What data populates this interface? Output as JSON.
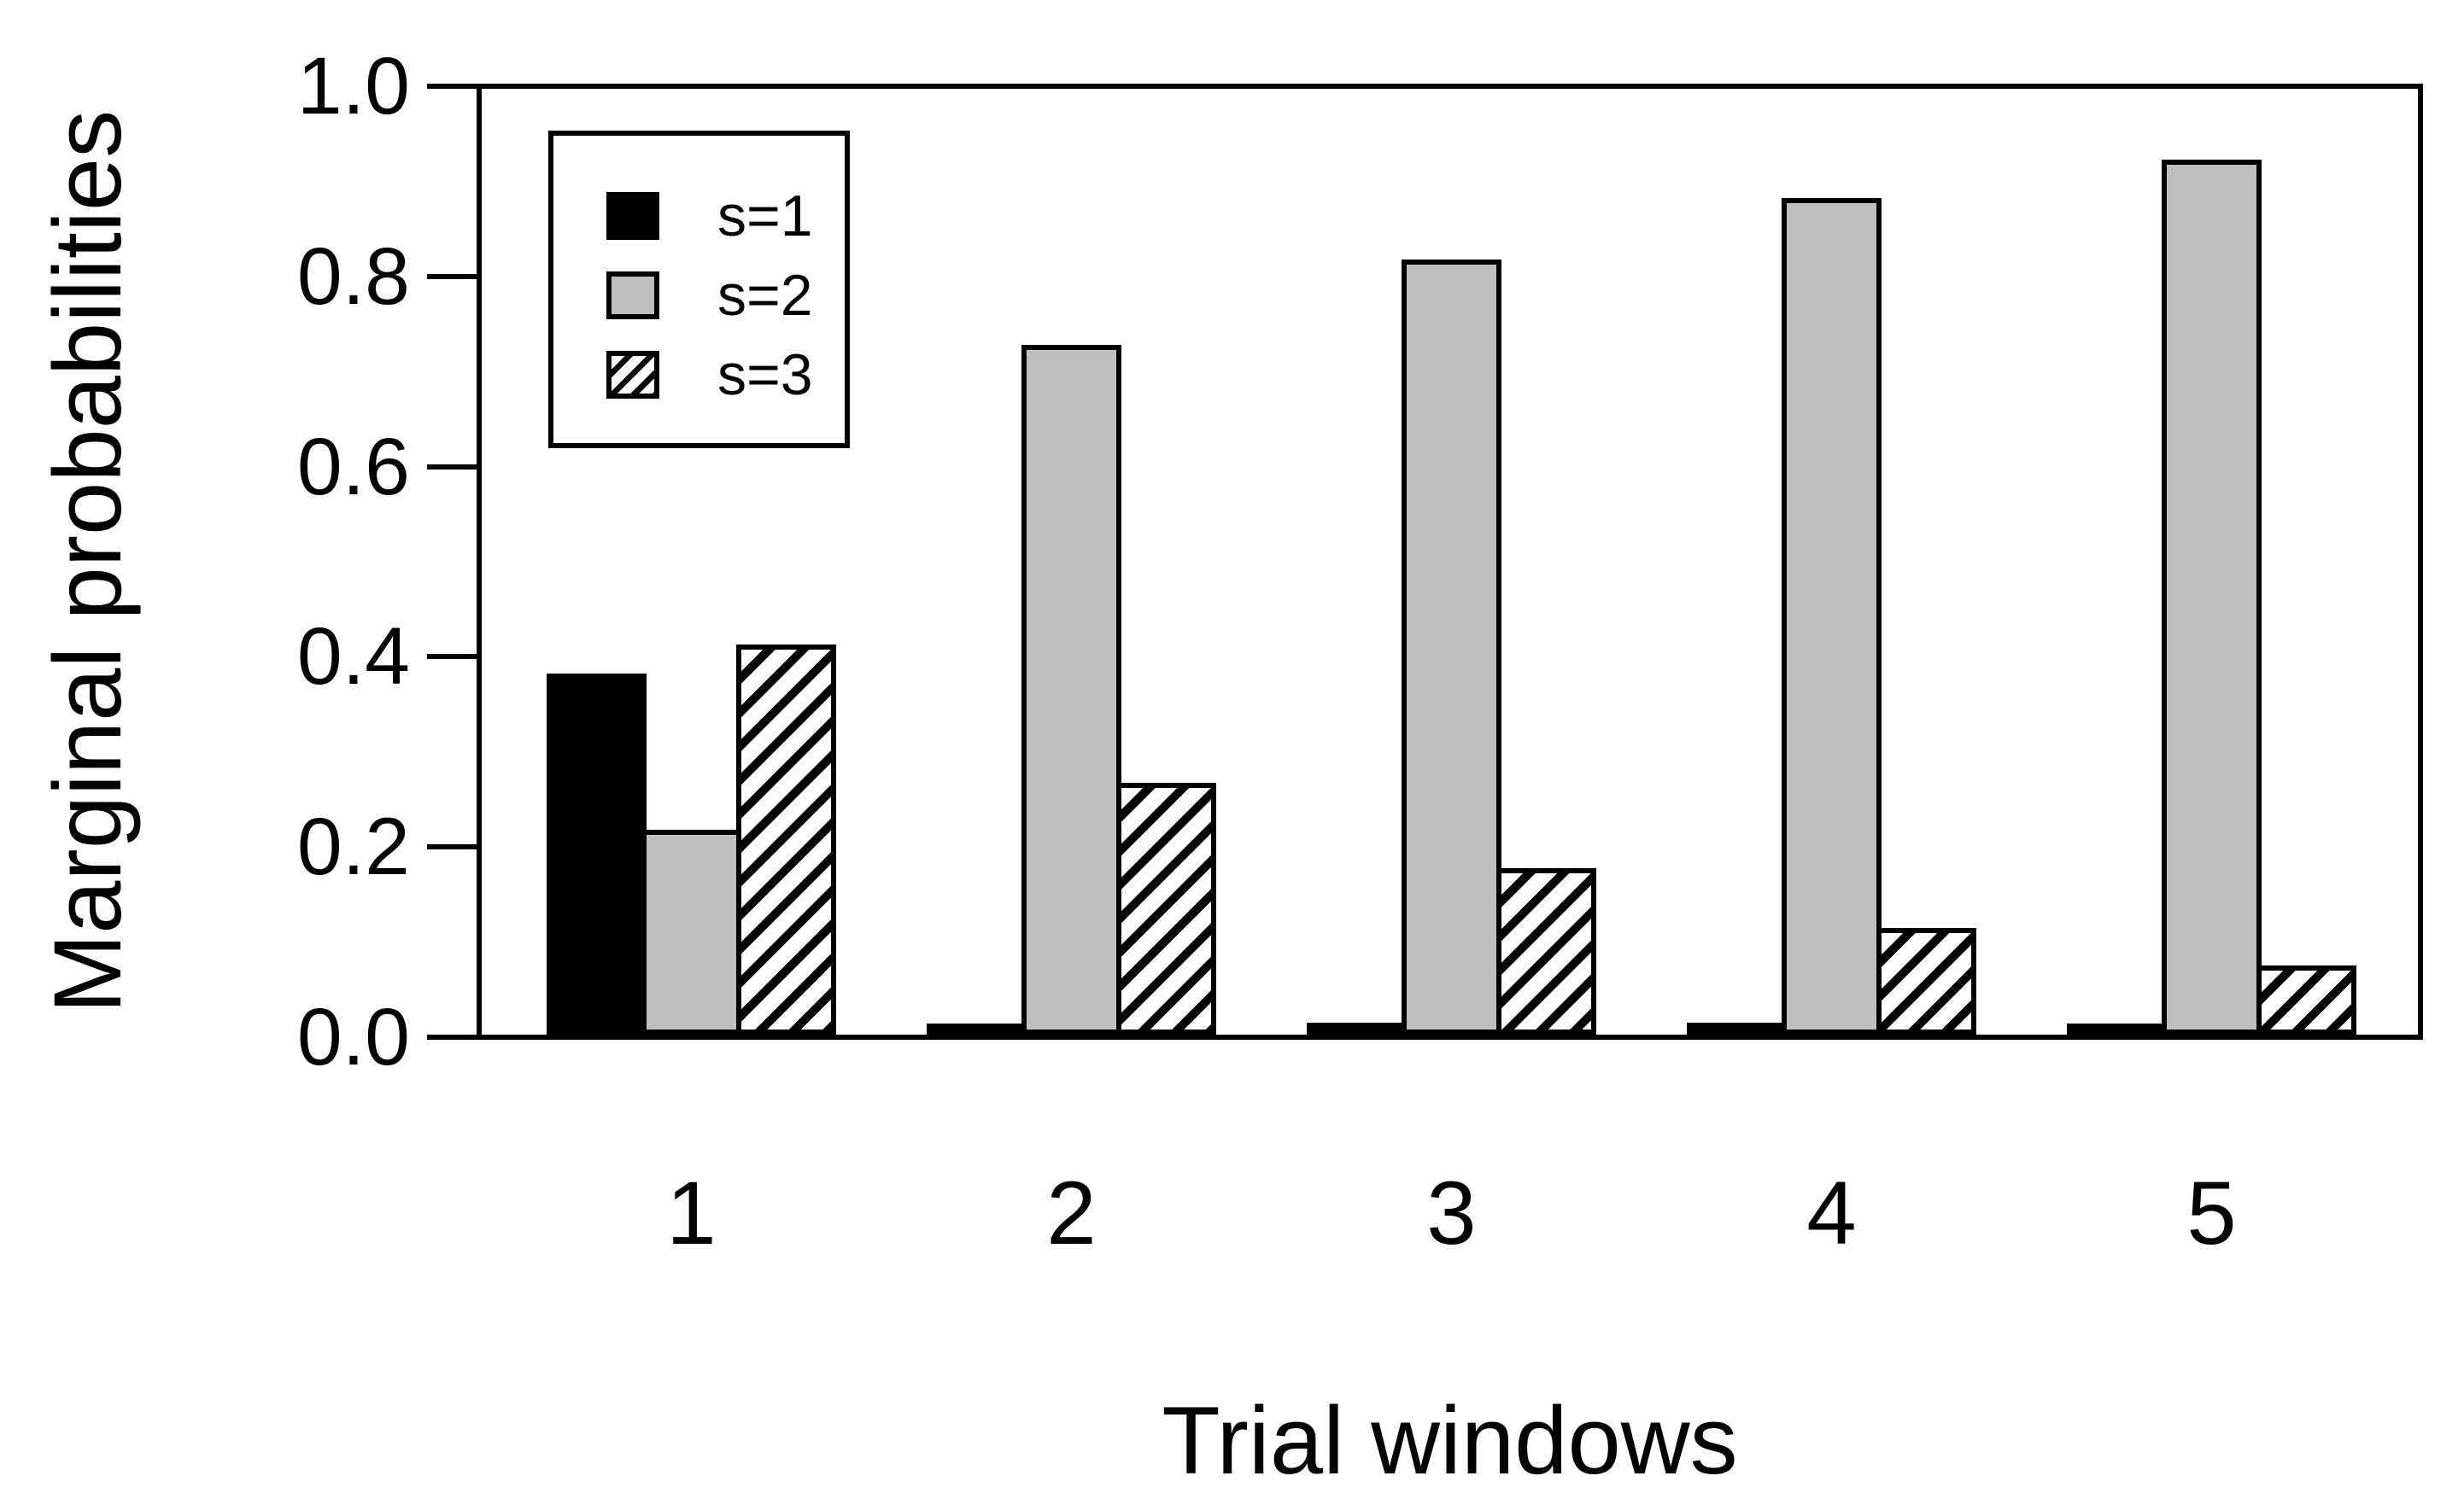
{
  "chart_data": {
    "type": "bar",
    "title": "",
    "xlabel": "Trial windows",
    "ylabel": "Marginal probabilities",
    "categories": [
      "1",
      "2",
      "3",
      "4",
      "5"
    ],
    "series": [
      {
        "name": "s=1",
        "fill": "black",
        "values": [
          0.38,
          0.012,
          0.013,
          0.013,
          0.012
        ]
      },
      {
        "name": "s=2",
        "fill": "gray",
        "values": [
          0.215,
          0.725,
          0.815,
          0.88,
          0.92
        ]
      },
      {
        "name": "s=3",
        "fill": "hatch",
        "values": [
          0.41,
          0.265,
          0.175,
          0.112,
          0.073
        ]
      }
    ],
    "ylim": [
      0.0,
      1.0
    ],
    "yticks": [
      "0.0",
      "0.2",
      "0.4",
      "0.6",
      "0.8",
      "1.0"
    ],
    "grid": false,
    "legend_position": "top-left"
  },
  "colors": {
    "background": "#FFFFFF",
    "bar_black": "#000000",
    "bar_gray": "#BEBEBE",
    "hatch_foreground": "#000000",
    "hatch_background": "#FFFFFF",
    "axis": "#000000",
    "text": "#000000"
  },
  "legend": {
    "items": [
      {
        "label": "s=1",
        "swatch": "black-square"
      },
      {
        "label": "s=2",
        "swatch": "gray-square"
      },
      {
        "label": "s=3",
        "swatch": "hatched-square"
      }
    ]
  }
}
